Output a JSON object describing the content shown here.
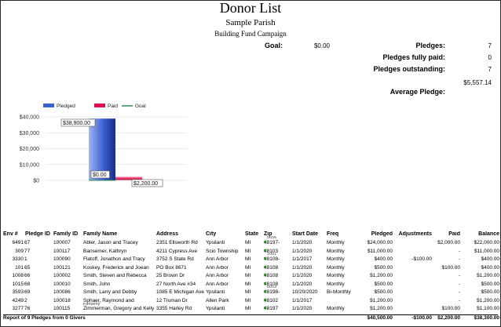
{
  "report": {
    "title": "Donor List",
    "parish": "Sample Parish",
    "campaign": "Building Fund Campaign"
  },
  "summary": {
    "goal_label": "Goal:",
    "goal_value": "$0.00",
    "pledges_label": "Pledges:",
    "pledges_value": "7",
    "fully_paid_label": "Pledges fully paid:",
    "fully_paid_value": "0",
    "outstanding_label": "Pledges outstanding:",
    "outstanding_value": "7",
    "average_value": "$5,557.14",
    "average_label": "Average Pledge:"
  },
  "chart_data": {
    "type": "bar",
    "legend": [
      "Pledged",
      "Paid",
      "Goal"
    ],
    "legend_colors": [
      "#3a5fd0",
      "#e0104a",
      "#2e8b57"
    ],
    "ylim": [
      0,
      40000
    ],
    "yticks": [
      "$40,000",
      "$30,000",
      "$20,000",
      "$10,000",
      "$0"
    ],
    "ytick_values": [
      40000,
      30000,
      20000,
      10000,
      0
    ],
    "series": [
      {
        "name": "Pledged",
        "values": [
          38900
        ],
        "label": "$38,900.00"
      },
      {
        "name": "Paid",
        "values": [
          2200
        ],
        "label": "$2,200.00"
      },
      {
        "name": "Goal",
        "values": [
          0
        ],
        "label": "$0.00"
      }
    ]
  },
  "table": {
    "headers": [
      "Env #",
      "Pledge ID",
      "Family ID",
      "Family Name",
      "Address",
      "City",
      "State",
      "Zip",
      "Start Date",
      "Freq",
      "Pledged",
      "Adjustments",
      "Paid",
      "Balance"
    ],
    "rows": [
      [
        "6491",
        "67",
        "100007",
        "Abler, Jason and Tracey",
        "2351 Ellsworth Rd",
        "Ypsilanti",
        "MI",
        "48197-",
        "1/1/2020",
        "Monthly",
        "$24,000.00",
        "",
        "$2,000.00",
        "$22,000.00"
      ],
      [
        "309",
        "77",
        "100117",
        "Bansemer, Kathryn",
        "4211 Cypress Ave",
        "Scio Township",
        "MI",
        "48103",
        "1/1/2020",
        "Monthly",
        "$11,000.00",
        "",
        "-",
        "$11,000.00"
      ],
      [
        "3330",
        "1",
        "100090",
        "Flatoff, Jonathon and Tracy",
        "3752 S State Rd",
        "Ann Arbor",
        "MI",
        "48108-",
        "1/1/2017",
        "Monthly",
        "$400.00",
        "-$100.00",
        "-",
        "$400.00"
      ],
      [
        "101",
        "65",
        "100121",
        "Koskey, Frederick and Joean",
        "PO Box 8671",
        "Ann Arbor",
        "MI",
        "48108",
        "1/1/2020",
        "Monthly",
        "$500.00",
        "",
        "$100.00",
        "$400.00"
      ],
      [
        "1008",
        "66",
        "100002",
        "Smith, Steven and Rebecca",
        "25 Brown Dr",
        "Ann Arbor",
        "MI",
        "48108",
        "1/1/2020",
        "Monthly",
        "$1,200.00",
        "",
        "-",
        "$1,200.00"
      ],
      [
        "1015",
        "68",
        "100010",
        "Smith, John",
        "27 North Ave #34",
        "Ann Arbor",
        "MI",
        "48108",
        "1/1/2020",
        "Monthly",
        "$500.00",
        "",
        "-",
        "$500.00"
      ],
      [
        "3593",
        "69",
        "100086",
        "Smith, Larry and Debby",
        "1085 E Michigan Ave",
        "Ypsilanti",
        "MI",
        "48198-",
        "10/20/2020",
        "Bi-Monthly",
        "$500.00",
        "",
        "-",
        "$500.00"
      ],
      [
        "4249",
        "2",
        "100018",
        "Sphaer, Raymond and",
        "12 Truman Dr",
        "Allen Park",
        "MI",
        "48102",
        "1/1/2017",
        "",
        "$1,200.00",
        "",
        "-",
        "$1,200.00"
      ],
      [
        "3277",
        "76",
        "100115",
        "Zimmerman, Gregory and Kelly",
        "3355 Harley Rd",
        "Ypsilanti",
        "MI",
        "48197",
        "1/1/2020",
        "Monthly",
        "$1,200.00",
        "",
        "$100.00",
        "$1,100.00"
      ]
    ],
    "overflow": [
      "",
      "",
      "",
      "",
      "",
      "",
      "",
      "",
      "",
      "",
      "",
      "",
      "",
      ""
    ],
    "zip_overflow_text": [
      "5656",
      "",
      "1001",
      "",
      "",
      "",
      "6003",
      "",
      ""
    ],
    "name_overflow_text": [
      "",
      "",
      "",
      "",
      "",
      "",
      "",
      "Kimberly",
      ""
    ],
    "footer_text": "Report of 9 Pledges from 0 Givers",
    "totals": {
      "pledged": "$40,500.00",
      "adjustments": "-$100.00",
      "paid": "$2,200.00",
      "balance": "$38,300.00"
    }
  }
}
